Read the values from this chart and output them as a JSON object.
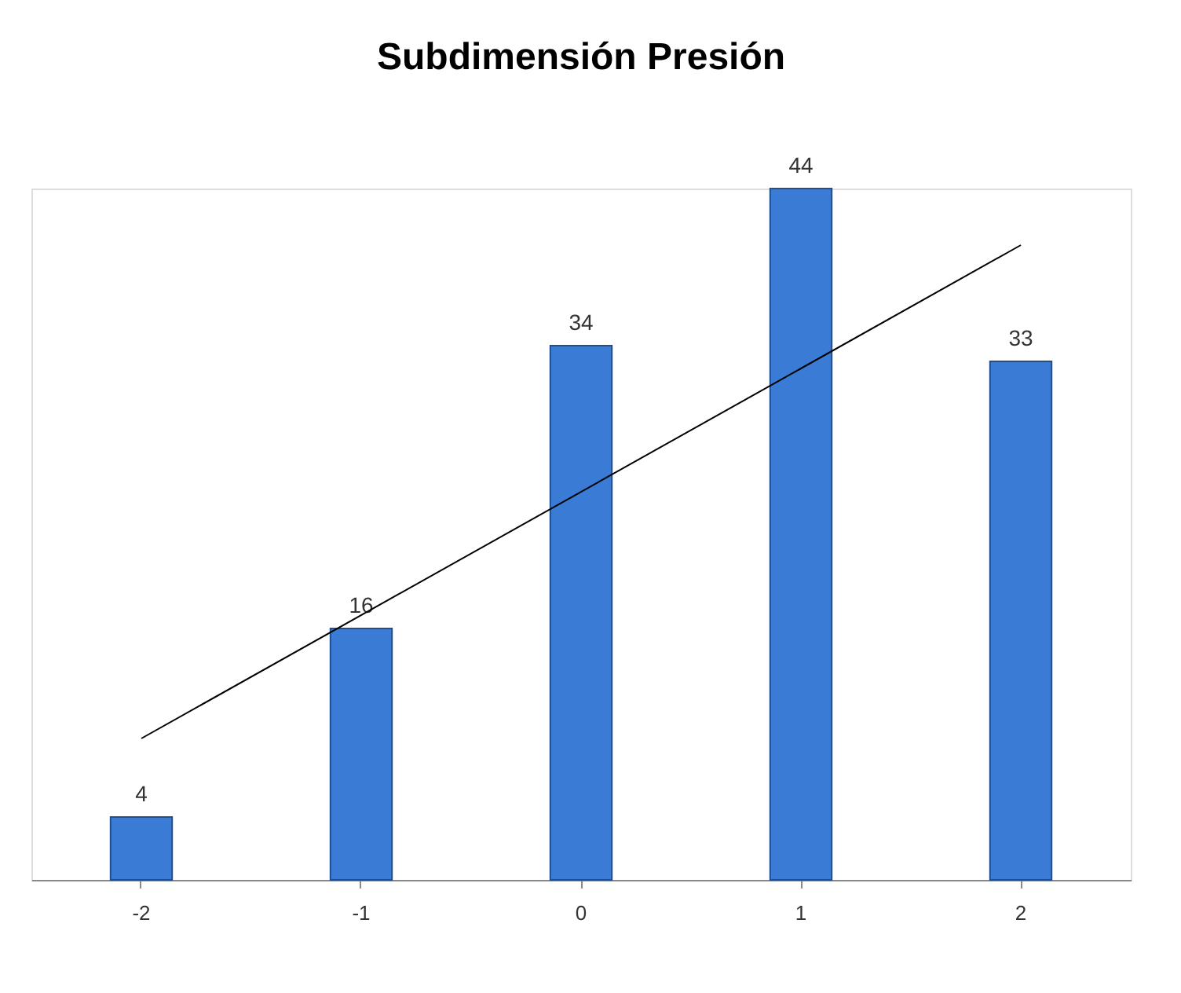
{
  "chart_data": {
    "type": "bar",
    "title": "Subdimensión Presión",
    "categories": [
      "-2",
      "-1",
      "0",
      "1",
      "2"
    ],
    "series": [
      {
        "color": "#3a7bd5",
        "values": [
          4,
          16,
          34,
          44,
          33
        ],
        "value_labels": [
          "4",
          "16",
          "34",
          "44",
          "33"
        ]
      },
      {
        "type": "line",
        "color": "#000000",
        "x": [
          "-2",
          "2"
        ],
        "values": [
          9,
          40.4
        ]
      }
    ]
  }
}
